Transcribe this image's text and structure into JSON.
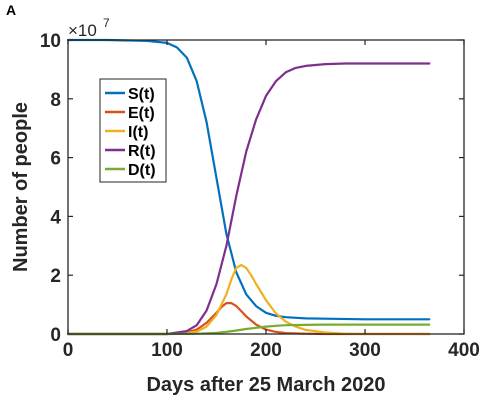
{
  "panel_label": "A",
  "chart_data": {
    "type": "line",
    "title": "",
    "xlabel": "Days after 25 March 2020",
    "ylabel": "Number of people",
    "xlim": [
      0,
      400
    ],
    "ylim": [
      0,
      10
    ],
    "x_ticks": [
      "0",
      "100",
      "200",
      "300",
      "400"
    ],
    "y_ticks": [
      "0",
      "2",
      "4",
      "6",
      "8",
      "10"
    ],
    "y_multiplier": {
      "base": "×10",
      "exponent": "7"
    },
    "grid": false,
    "legend_position": "upper-left",
    "series": [
      {
        "name": "S(t)",
        "color": "#0072BD",
        "x": [
          0,
          40,
          80,
          100,
          110,
          120,
          130,
          140,
          150,
          160,
          170,
          180,
          190,
          200,
          210,
          220,
          240,
          260,
          300,
          365
        ],
        "y": [
          10.0,
          10.0,
          9.97,
          9.9,
          9.75,
          9.4,
          8.6,
          7.2,
          5.3,
          3.4,
          2.1,
          1.35,
          0.95,
          0.72,
          0.62,
          0.57,
          0.53,
          0.52,
          0.5,
          0.5
        ]
      },
      {
        "name": "E(t)",
        "color": "#D95319",
        "x": [
          0,
          100,
          120,
          130,
          140,
          150,
          155,
          160,
          165,
          170,
          175,
          180,
          190,
          200,
          210,
          220,
          240,
          260,
          365
        ],
        "y": [
          0,
          0,
          0.05,
          0.15,
          0.38,
          0.72,
          0.92,
          1.05,
          1.05,
          0.95,
          0.78,
          0.6,
          0.32,
          0.15,
          0.07,
          0.03,
          0.01,
          0,
          0
        ]
      },
      {
        "name": "I(t)",
        "color": "#EDB120",
        "x": [
          0,
          100,
          120,
          130,
          140,
          150,
          160,
          165,
          170,
          175,
          180,
          185,
          190,
          200,
          210,
          220,
          230,
          240,
          260,
          280,
          365
        ],
        "y": [
          0,
          0,
          0.03,
          0.08,
          0.25,
          0.65,
          1.35,
          1.85,
          2.25,
          2.35,
          2.25,
          2.0,
          1.7,
          1.15,
          0.7,
          0.42,
          0.25,
          0.14,
          0.05,
          0.01,
          0
        ]
      },
      {
        "name": "R(t)",
        "color": "#7E2F8E",
        "x": [
          0,
          100,
          120,
          130,
          140,
          150,
          160,
          170,
          180,
          190,
          200,
          210,
          220,
          230,
          240,
          260,
          280,
          300,
          365
        ],
        "y": [
          0,
          0,
          0.1,
          0.3,
          0.8,
          1.7,
          3.0,
          4.7,
          6.2,
          7.3,
          8.1,
          8.6,
          8.9,
          9.05,
          9.12,
          9.18,
          9.2,
          9.2,
          9.2
        ]
      },
      {
        "name": "D(t)",
        "color": "#77AC30",
        "x": [
          0,
          100,
          130,
          150,
          160,
          170,
          180,
          190,
          200,
          210,
          220,
          240,
          260,
          300,
          365
        ],
        "y": [
          0,
          0,
          0.01,
          0.04,
          0.07,
          0.12,
          0.17,
          0.21,
          0.25,
          0.28,
          0.3,
          0.31,
          0.32,
          0.32,
          0.32
        ]
      }
    ]
  }
}
